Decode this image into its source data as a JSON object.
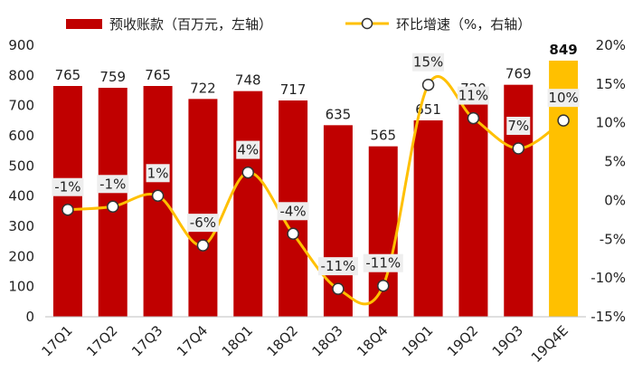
{
  "chart_data": {
    "type": "bar+line",
    "categories": [
      "17Q1",
      "17Q2",
      "17Q3",
      "17Q4",
      "18Q1",
      "18Q2",
      "18Q3",
      "18Q4",
      "19Q1",
      "19Q2",
      "19Q3",
      "19Q4E"
    ],
    "bar_series": {
      "name": "预收账款（百万元，左轴）",
      "values": [
        765,
        759,
        765,
        722,
        748,
        717,
        635,
        565,
        651,
        720,
        769,
        849
      ],
      "labels": [
        "765",
        "759",
        "765",
        "722",
        "748",
        "717",
        "635",
        "565",
        "651",
        "720",
        "769",
        "849"
      ],
      "highlight_index": 11
    },
    "line_series": {
      "name": "环比增速（%，右轴）",
      "values": [
        -1.2,
        -0.8,
        0.6,
        -5.8,
        3.6,
        -4.3,
        -11.4,
        -11.0,
        14.9,
        10.6,
        6.7,
        10.3
      ],
      "labels": [
        "-1%",
        "-1%",
        "1%",
        "-6%",
        "4%",
        "-4%",
        "-11%",
        "-11%",
        "15%",
        "11%",
        "7%",
        "10%"
      ]
    },
    "y_left": {
      "min": 0,
      "max": 900,
      "step": 100,
      "ticks": [
        "0",
        "100",
        "200",
        "300",
        "400",
        "500",
        "600",
        "700",
        "800",
        "900"
      ]
    },
    "y_right": {
      "min": -15,
      "max": 20,
      "step": 5,
      "ticks": [
        "-15%",
        "-10%",
        "-5%",
        "0%",
        "5%",
        "10%",
        "15%",
        "20%"
      ]
    },
    "colors": {
      "bar": "#c00000",
      "bar_highlight": "#ffc000",
      "line": "#ffc000",
      "marker_fill": "#ffffff",
      "marker_stroke": "#333333",
      "label_bg": "#eeeeee"
    },
    "legend_position": "top"
  }
}
